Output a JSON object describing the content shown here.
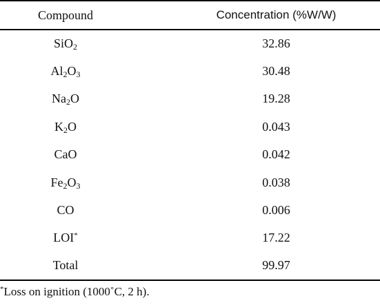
{
  "table": {
    "headers": {
      "compound": "Compound",
      "concentration": "Concentration (%W/W)"
    },
    "rows": [
      {
        "compound": [
          {
            "t": "SiO"
          },
          {
            "sub": "2"
          }
        ],
        "value": "32.86"
      },
      {
        "compound": [
          {
            "t": "Al"
          },
          {
            "sub": "2"
          },
          {
            "t": "O"
          },
          {
            "sub": "3"
          }
        ],
        "value": "30.48"
      },
      {
        "compound": [
          {
            "t": "Na"
          },
          {
            "sub": "2"
          },
          {
            "t": "O"
          }
        ],
        "value": "19.28"
      },
      {
        "compound": [
          {
            "t": "K"
          },
          {
            "sub": "2"
          },
          {
            "t": "O"
          }
        ],
        "value": "0.043"
      },
      {
        "compound": [
          {
            "t": "CaO"
          }
        ],
        "value": "0.042"
      },
      {
        "compound": [
          {
            "t": "Fe"
          },
          {
            "sub": "2"
          },
          {
            "t": "O"
          },
          {
            "sub": "3"
          }
        ],
        "value": "0.038"
      },
      {
        "compound": [
          {
            "t": "CO"
          }
        ],
        "value": "0.006"
      },
      {
        "compound": [
          {
            "t": "LOI"
          },
          {
            "sup": "*"
          }
        ],
        "value": "17.22"
      },
      {
        "compound": [
          {
            "t": "Total"
          }
        ],
        "value": "99.97"
      }
    ]
  },
  "footnote": {
    "marker": "*",
    "text": "Loss on ignition (1000˚C, 2 h)."
  }
}
